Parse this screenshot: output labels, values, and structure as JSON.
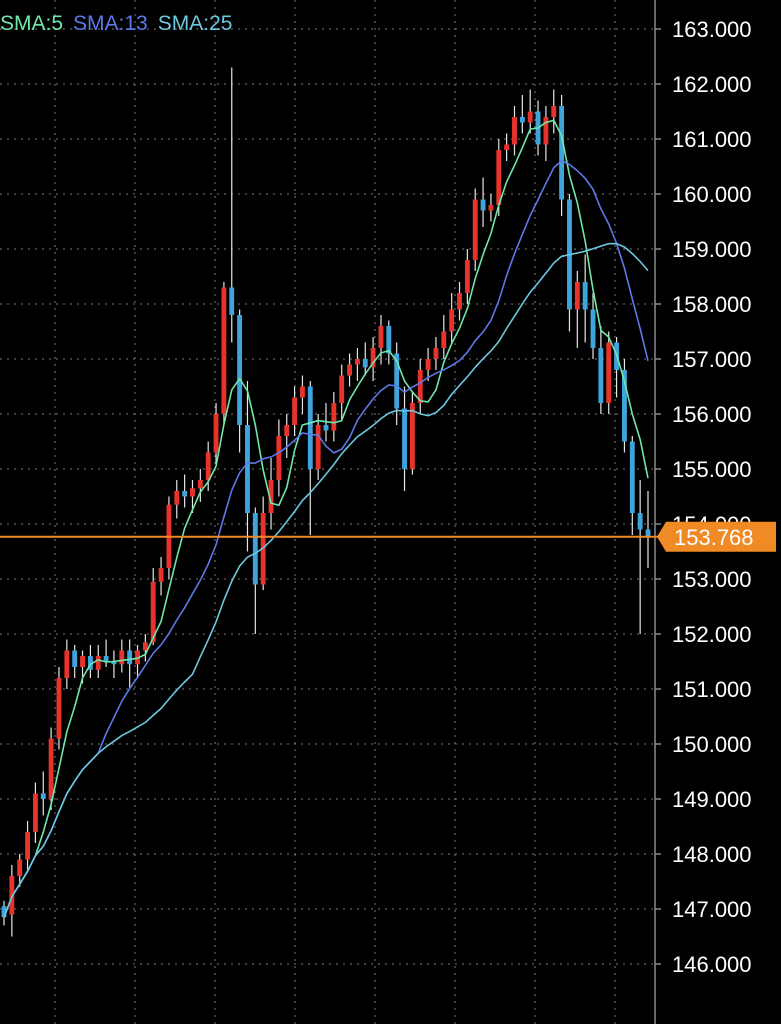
{
  "chart_data": {
    "type": "candlestick",
    "legend": [
      {
        "label": "SMA:5",
        "color": "#6ee8a8"
      },
      {
        "label": "SMA:13",
        "color": "#5b79e8"
      },
      {
        "label": "SMA:25",
        "color": "#6cc8e0"
      }
    ],
    "y_ticks": [
      "163.000",
      "162.000",
      "161.000",
      "160.000",
      "159.000",
      "158.000",
      "157.000",
      "156.000",
      "155.000",
      "154.000",
      "153.000",
      "152.000",
      "151.000",
      "150.000",
      "149.000",
      "148.000",
      "147.000",
      "146.000"
    ],
    "ylim": [
      145.5,
      163.5
    ],
    "current_price": {
      "label": "153.768",
      "value": 153.768,
      "color": "#f08a24"
    },
    "colors": {
      "up": "#e8332c",
      "down": "#3fa4dc",
      "grid": "#7a7a7a",
      "axis": "#8a8a8a"
    },
    "grid": true,
    "candles": [
      [
        147.05,
        147.15,
        146.7,
        146.85
      ],
      [
        146.9,
        147.8,
        146.5,
        147.6
      ],
      [
        147.6,
        148.0,
        147.4,
        147.9
      ],
      [
        147.9,
        148.6,
        147.7,
        148.4
      ],
      [
        148.4,
        149.3,
        148.2,
        149.1
      ],
      [
        149.1,
        149.5,
        148.7,
        149.0
      ],
      [
        149.0,
        150.3,
        148.8,
        150.1
      ],
      [
        150.1,
        151.4,
        149.9,
        151.2
      ],
      [
        151.2,
        151.9,
        151.0,
        151.7
      ],
      [
        151.7,
        151.8,
        151.2,
        151.4
      ],
      [
        151.4,
        151.7,
        151.1,
        151.6
      ],
      [
        151.6,
        151.8,
        151.2,
        151.35
      ],
      [
        151.35,
        151.8,
        151.2,
        151.6
      ],
      [
        151.6,
        151.9,
        151.4,
        151.5
      ],
      [
        151.5,
        151.7,
        151.2,
        151.45
      ],
      [
        151.45,
        151.9,
        151.3,
        151.7
      ],
      [
        151.7,
        151.9,
        151.0,
        151.45
      ],
      [
        151.45,
        151.8,
        151.2,
        151.7
      ],
      [
        151.7,
        152.0,
        151.5,
        151.85
      ],
      [
        151.85,
        153.2,
        151.8,
        152.95
      ],
      [
        152.95,
        153.4,
        152.7,
        153.2
      ],
      [
        153.2,
        154.5,
        153.0,
        154.35
      ],
      [
        154.35,
        154.8,
        154.1,
        154.6
      ],
      [
        154.6,
        154.9,
        154.3,
        154.5
      ],
      [
        154.5,
        154.8,
        154.2,
        154.65
      ],
      [
        154.65,
        155.0,
        154.4,
        154.8
      ],
      [
        154.8,
        155.5,
        154.6,
        155.3
      ],
      [
        155.3,
        156.2,
        155.1,
        156.0
      ],
      [
        156.0,
        158.4,
        155.8,
        158.3
      ],
      [
        158.3,
        162.3,
        157.3,
        157.8
      ],
      [
        157.8,
        157.9,
        155.3,
        155.8
      ],
      [
        155.8,
        156.6,
        153.5,
        154.2
      ],
      [
        154.2,
        154.3,
        152.0,
        152.9
      ],
      [
        152.9,
        154.5,
        152.8,
        154.2
      ],
      [
        154.2,
        155.2,
        153.9,
        154.8
      ],
      [
        154.8,
        155.9,
        154.5,
        155.6
      ],
      [
        155.6,
        156.0,
        155.2,
        155.8
      ],
      [
        155.8,
        156.5,
        155.6,
        156.3
      ],
      [
        156.3,
        156.7,
        156.0,
        156.5
      ],
      [
        156.5,
        156.6,
        153.8,
        155.0
      ],
      [
        155.0,
        156.0,
        154.8,
        155.8
      ],
      [
        155.8,
        156.2,
        155.5,
        155.7
      ],
      [
        155.7,
        156.4,
        155.5,
        156.2
      ],
      [
        156.2,
        156.9,
        155.9,
        156.7
      ],
      [
        156.7,
        157.1,
        156.5,
        156.9
      ],
      [
        156.9,
        157.2,
        156.6,
        157.0
      ],
      [
        157.0,
        157.3,
        156.7,
        156.85
      ],
      [
        156.85,
        157.4,
        156.6,
        157.2
      ],
      [
        157.2,
        157.8,
        156.9,
        157.6
      ],
      [
        157.6,
        157.7,
        156.9,
        157.1
      ],
      [
        157.1,
        157.3,
        155.8,
        156.1
      ],
      [
        156.1,
        156.5,
        154.6,
        155.0
      ],
      [
        155.0,
        156.4,
        154.9,
        156.2
      ],
      [
        156.2,
        157.0,
        156.0,
        156.8
      ],
      [
        156.8,
        157.2,
        156.6,
        157.0
      ],
      [
        157.0,
        157.4,
        156.8,
        157.2
      ],
      [
        157.2,
        157.8,
        157.0,
        157.5
      ],
      [
        157.5,
        158.2,
        157.3,
        157.9
      ],
      [
        157.9,
        158.4,
        157.7,
        158.2
      ],
      [
        158.2,
        159.0,
        158.0,
        158.8
      ],
      [
        158.8,
        160.1,
        158.6,
        159.9
      ],
      [
        159.9,
        160.3,
        159.4,
        159.7
      ],
      [
        159.7,
        160.0,
        159.5,
        159.8
      ],
      [
        159.8,
        161.0,
        159.6,
        160.8
      ],
      [
        160.8,
        161.1,
        160.6,
        160.9
      ],
      [
        160.9,
        161.6,
        160.7,
        161.4
      ],
      [
        161.4,
        161.8,
        161.1,
        161.3
      ],
      [
        161.3,
        161.9,
        161.1,
        161.5
      ],
      [
        161.5,
        161.7,
        160.7,
        160.9
      ],
      [
        160.9,
        161.6,
        160.6,
        161.4
      ],
      [
        161.4,
        161.9,
        161.1,
        161.6
      ],
      [
        161.6,
        161.8,
        159.6,
        159.9
      ],
      [
        159.9,
        160.0,
        157.5,
        157.9
      ],
      [
        157.9,
        158.6,
        157.2,
        158.4
      ],
      [
        158.4,
        158.9,
        157.3,
        157.9
      ],
      [
        157.9,
        158.2,
        157.0,
        157.2
      ],
      [
        157.2,
        157.6,
        156.0,
        156.2
      ],
      [
        156.2,
        157.5,
        156.0,
        157.3
      ],
      [
        157.3,
        157.4,
        156.3,
        156.8
      ],
      [
        156.8,
        157.0,
        155.3,
        155.5
      ],
      [
        155.5,
        155.6,
        153.8,
        154.2
      ],
      [
        154.2,
        154.8,
        152.0,
        153.9
      ],
      [
        153.9,
        154.6,
        153.2,
        153.77
      ]
    ]
  }
}
